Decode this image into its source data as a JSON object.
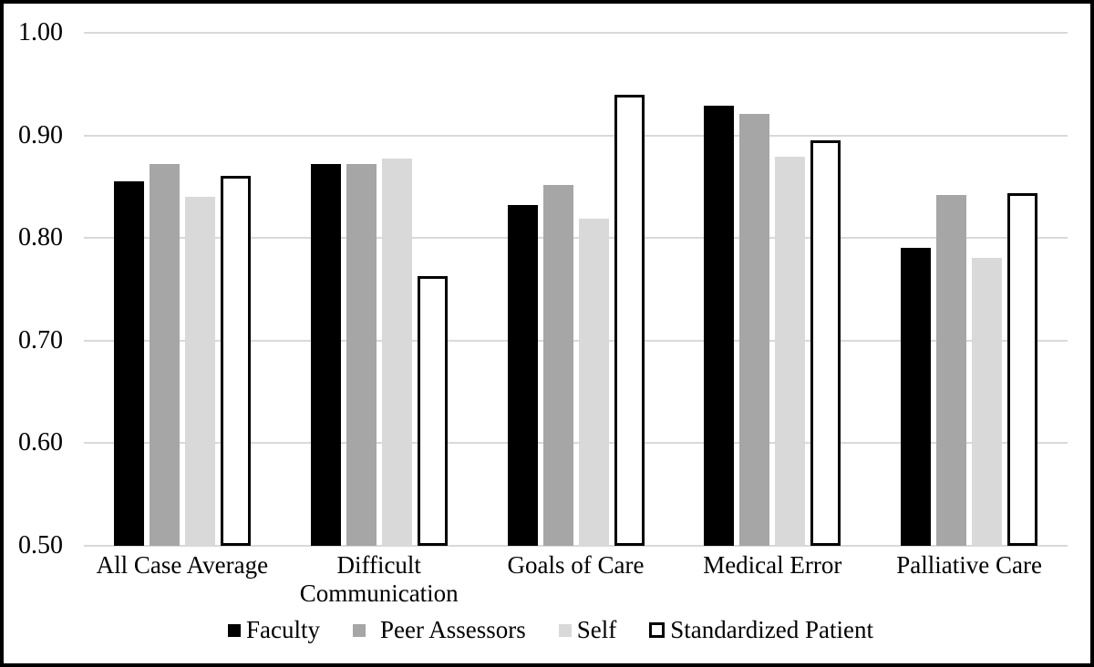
{
  "chart_data": {
    "type": "bar",
    "title": "",
    "xlabel": "",
    "ylabel": "",
    "categories": [
      "All Case Average",
      "Difficult Communication",
      "Goals of Care",
      "Medical Error",
      "Palliative Care"
    ],
    "series": [
      {
        "name": "Faculty",
        "color": "#000000",
        "outlined": false,
        "values": [
          0.855,
          0.872,
          0.832,
          0.929,
          0.79
        ]
      },
      {
        "name": "Peer Assessors",
        "color": "#a6a6a6",
        "outlined": false,
        "values": [
          0.872,
          0.872,
          0.852,
          0.921,
          0.842
        ]
      },
      {
        "name": "Self",
        "color": "#d9d9d9",
        "outlined": false,
        "values": [
          0.84,
          0.877,
          0.819,
          0.879,
          0.781
        ]
      },
      {
        "name": "Standardized Patient",
        "color": "#ffffff",
        "outlined": true,
        "values": [
          0.861,
          0.763,
          0.94,
          0.895,
          0.844
        ]
      }
    ],
    "ylim": [
      0.5,
      1.0
    ],
    "yticks": [
      0.5,
      0.6,
      0.7,
      0.8,
      0.9,
      1.0
    ],
    "ytick_labels": [
      "0.50",
      "0.60",
      "0.70",
      "0.80",
      "0.90",
      "1.00"
    ],
    "grid": true,
    "legend_position": "bottom",
    "colors": {
      "gridline": "#d9d9d9",
      "axis_line": "#d9d9d9",
      "figure_border": "#000000",
      "background": "#ffffff"
    }
  }
}
